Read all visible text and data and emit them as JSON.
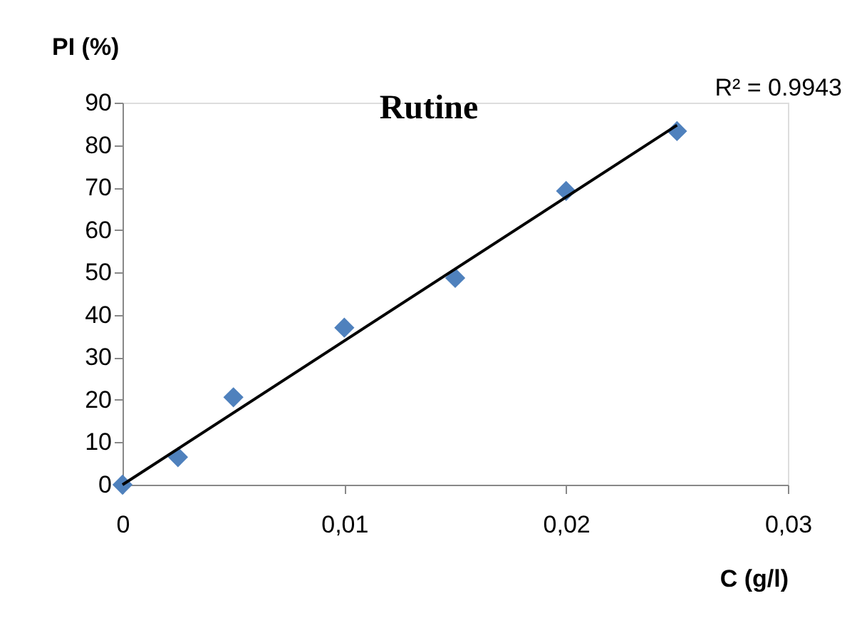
{
  "chart_data": {
    "type": "scatter",
    "title": "Rutine",
    "xlabel": "C (g/l)",
    "ylabel": "PI (%)",
    "annotations": [
      "R² = 0.9943"
    ],
    "x": [
      0,
      0.0025,
      0.005,
      0.01,
      0.015,
      0.02,
      0.025
    ],
    "series": [
      {
        "color": "#4f81bd",
        "marker": "diamond",
        "values": [
          0,
          6.5,
          20.6,
          37,
          48.7,
          69.2,
          83.3
        ]
      },
      {
        "type": "line",
        "color": "#000000",
        "x": [
          0,
          0.025
        ],
        "values": [
          0,
          84.7
        ],
        "line_style": "solid"
      }
    ],
    "xlim": [
      0,
      0.03
    ],
    "xticks": [
      0,
      {
        "value": 0.01,
        "label": "0,01"
      },
      {
        "value": 0.02,
        "label": "0,02"
      },
      {
        "value": 0.03,
        "label": "0,03"
      }
    ],
    "ylim": [
      0,
      90
    ],
    "yticks": [
      0,
      10,
      20,
      30,
      40,
      50,
      60,
      70,
      80,
      90
    ],
    "grid": false
  }
}
